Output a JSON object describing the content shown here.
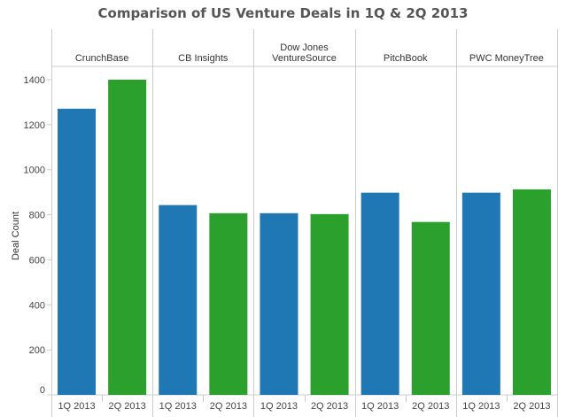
{
  "chart_data": {
    "type": "bar",
    "title": "Comparison of US Venture Deals in 1Q & 2Q 2013",
    "ylabel": "Deal Count",
    "xlabel": "",
    "ylim": [
      0,
      1470
    ],
    "yticks": [
      0,
      200,
      400,
      600,
      800,
      1000,
      1200,
      1400
    ],
    "grid": false,
    "legend": "none",
    "groups": [
      "CrunchBase",
      "CB Insights",
      "Dow Jones VentureSource",
      "PitchBook",
      "PWC MoneyTree"
    ],
    "group_labels": [
      [
        "CrunchBase"
      ],
      [
        "CB Insights"
      ],
      [
        "Dow Jones",
        "VentureSource"
      ],
      [
        "PitchBook"
      ],
      [
        "PWC MoneyTree"
      ]
    ],
    "categories": [
      "1Q 2013",
      "2Q 2013"
    ],
    "series": [
      {
        "name": "1Q 2013",
        "color": "#1f77b4",
        "values": [
          1271,
          843,
          807,
          898,
          898
        ]
      },
      {
        "name": "2Q 2013",
        "color": "#2ca02c",
        "values": [
          1400,
          807,
          803,
          768,
          913
        ]
      }
    ]
  },
  "colors": {
    "axis": "#cccccc",
    "text": "#333333",
    "title": "#555555"
  }
}
